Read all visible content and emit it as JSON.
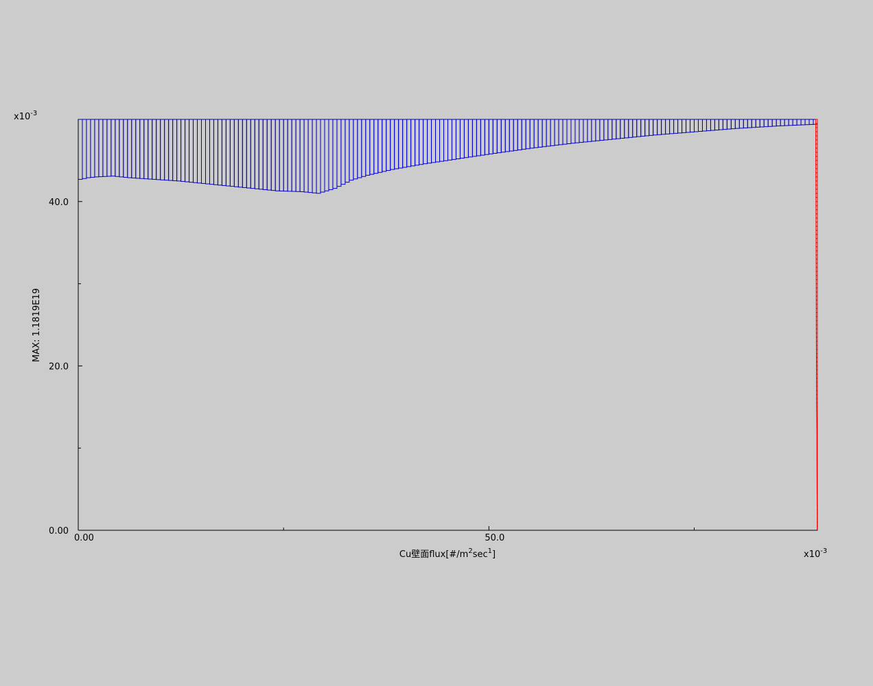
{
  "chart_data": {
    "type": "bar",
    "title": "",
    "xlabel_parts": {
      "prefix": "Cu壁面flux[#/m",
      "sup1": "2",
      "mid": "sec",
      "sup2": "1",
      "suffix": "]"
    },
    "ylabel": "MAX: 1.1819E19",
    "y_exponent": {
      "base": "x10",
      "power": "-3"
    },
    "x_exponent": {
      "base": "x10",
      "power": "-3"
    },
    "xlim": [
      0,
      90
    ],
    "ylim": [
      0,
      50
    ],
    "x_ticks": [
      {
        "label": "0.00",
        "value": 0
      },
      {
        "label": "50.0",
        "value": 50
      }
    ],
    "x_minor_ticks": [
      25,
      75
    ],
    "y_ticks": [
      {
        "label": "0.00",
        "value": 0
      },
      {
        "label": "20.0",
        "value": 20
      },
      {
        "label": "40.0",
        "value": 40
      }
    ],
    "y_minor_ticks": [
      10,
      30
    ],
    "grid": false,
    "legend": "none",
    "colors": {
      "series1": "#0000cc",
      "series2": "#ff0000",
      "axis": "#000000"
    },
    "series": [
      {
        "orientation": "hanging",
        "anchor_value": 50,
        "bin_width": 0.5,
        "x_start": 0,
        "x_end": 89.5,
        "profile": [
          [
            0,
            42.7
          ],
          [
            1,
            42.9
          ],
          [
            2,
            43.0
          ],
          [
            4,
            43.1
          ],
          [
            6,
            42.9
          ],
          [
            9,
            42.7
          ],
          [
            12,
            42.5
          ],
          [
            15,
            42.2
          ],
          [
            18,
            41.9
          ],
          [
            21,
            41.6
          ],
          [
            24,
            41.3
          ],
          [
            27,
            41.2
          ],
          [
            29,
            41.0
          ],
          [
            31,
            41.6
          ],
          [
            32,
            42.1
          ],
          [
            33,
            42.6
          ],
          [
            35,
            43.2
          ],
          [
            38,
            43.9
          ],
          [
            42,
            44.6
          ],
          [
            46,
            45.2
          ],
          [
            50,
            45.8
          ],
          [
            55,
            46.5
          ],
          [
            60,
            47.1
          ],
          [
            65,
            47.6
          ],
          [
            70,
            48.1
          ],
          [
            75,
            48.5
          ],
          [
            80,
            48.9
          ],
          [
            85,
            49.2
          ],
          [
            89.5,
            49.4
          ]
        ]
      },
      {
        "orientation": "horizontal",
        "anchor_value": 90,
        "bin_height": 0.5,
        "y_start": 0,
        "y_end": 50,
        "profile": [
          [
            0,
            89.97
          ],
          [
            2,
            89.97
          ],
          [
            5,
            89.95
          ],
          [
            8,
            89.94
          ],
          [
            12,
            89.93
          ],
          [
            15,
            89.9
          ],
          [
            20,
            89.88
          ],
          [
            25,
            89.86
          ],
          [
            30,
            89.85
          ],
          [
            35,
            89.83
          ],
          [
            40,
            89.82
          ],
          [
            45,
            89.8
          ],
          [
            50,
            89.8
          ]
        ]
      }
    ]
  }
}
